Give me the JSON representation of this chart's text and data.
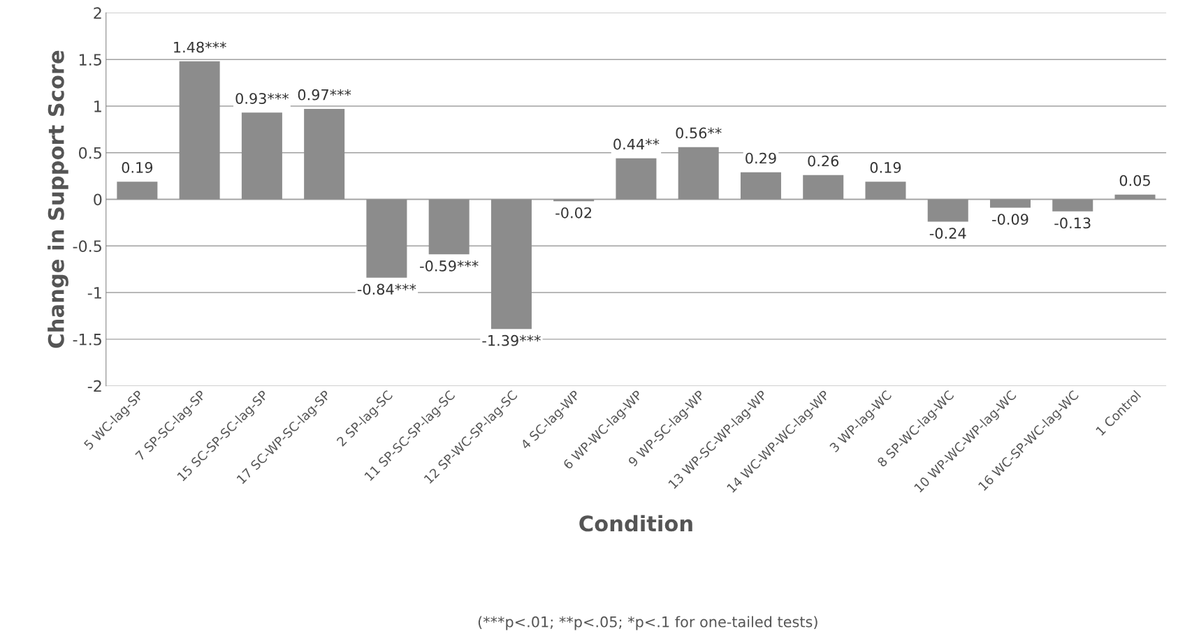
{
  "chart_data": {
    "type": "bar",
    "xlabel": "Condition",
    "ylabel": "Change in Support Score",
    "categories": [
      "5 WC-lag-SP",
      "7 SP-SC-lag-SP",
      "15 SC-SP-SC-lag-SP",
      "17 SC-WP-SC-lag-SP",
      "2 SP-lag-SC",
      "11 SP-SC-SP-lag-SC",
      "12 SP-WC-SP-lag-SC",
      "4 SC-lag-WP",
      "6 WP-WC-lag-WP",
      "9 WP-SC-lag-WP",
      "13 WP-SC-WP-lag-WP",
      "14 WC-WP-WC-lag-WP",
      "3 WP-lag-WC",
      "8 SP-WC-lag-WC",
      "10 WP-WC-WP-lag-WC",
      "16 WC-SP-WC-lag-WC",
      "1 Control"
    ],
    "values": [
      0.19,
      1.48,
      0.93,
      0.97,
      -0.84,
      -0.59,
      -1.39,
      -0.02,
      0.44,
      0.56,
      0.29,
      0.26,
      0.19,
      -0.24,
      -0.09,
      -0.13,
      0.05
    ],
    "value_labels": [
      "0.19",
      "1.48***",
      "0.93***",
      "0.97***",
      "-0.84***",
      "-0.59***",
      "-1.39***",
      "-0.02",
      "0.44**",
      "0.56**",
      "0.29",
      "0.26",
      "0.19",
      "-0.24",
      "-0.09",
      "-0.13",
      "0.05"
    ],
    "color": "#8c8c8c",
    "ylim": [
      -2,
      2
    ],
    "yticks": [
      -2,
      -1.5,
      -1,
      -0.5,
      0,
      0.5,
      1,
      1.5,
      2
    ],
    "grid": "y",
    "annotations": [
      "(***p<.01; **p<.05; *p<.1 for one-tailed tests)"
    ]
  }
}
